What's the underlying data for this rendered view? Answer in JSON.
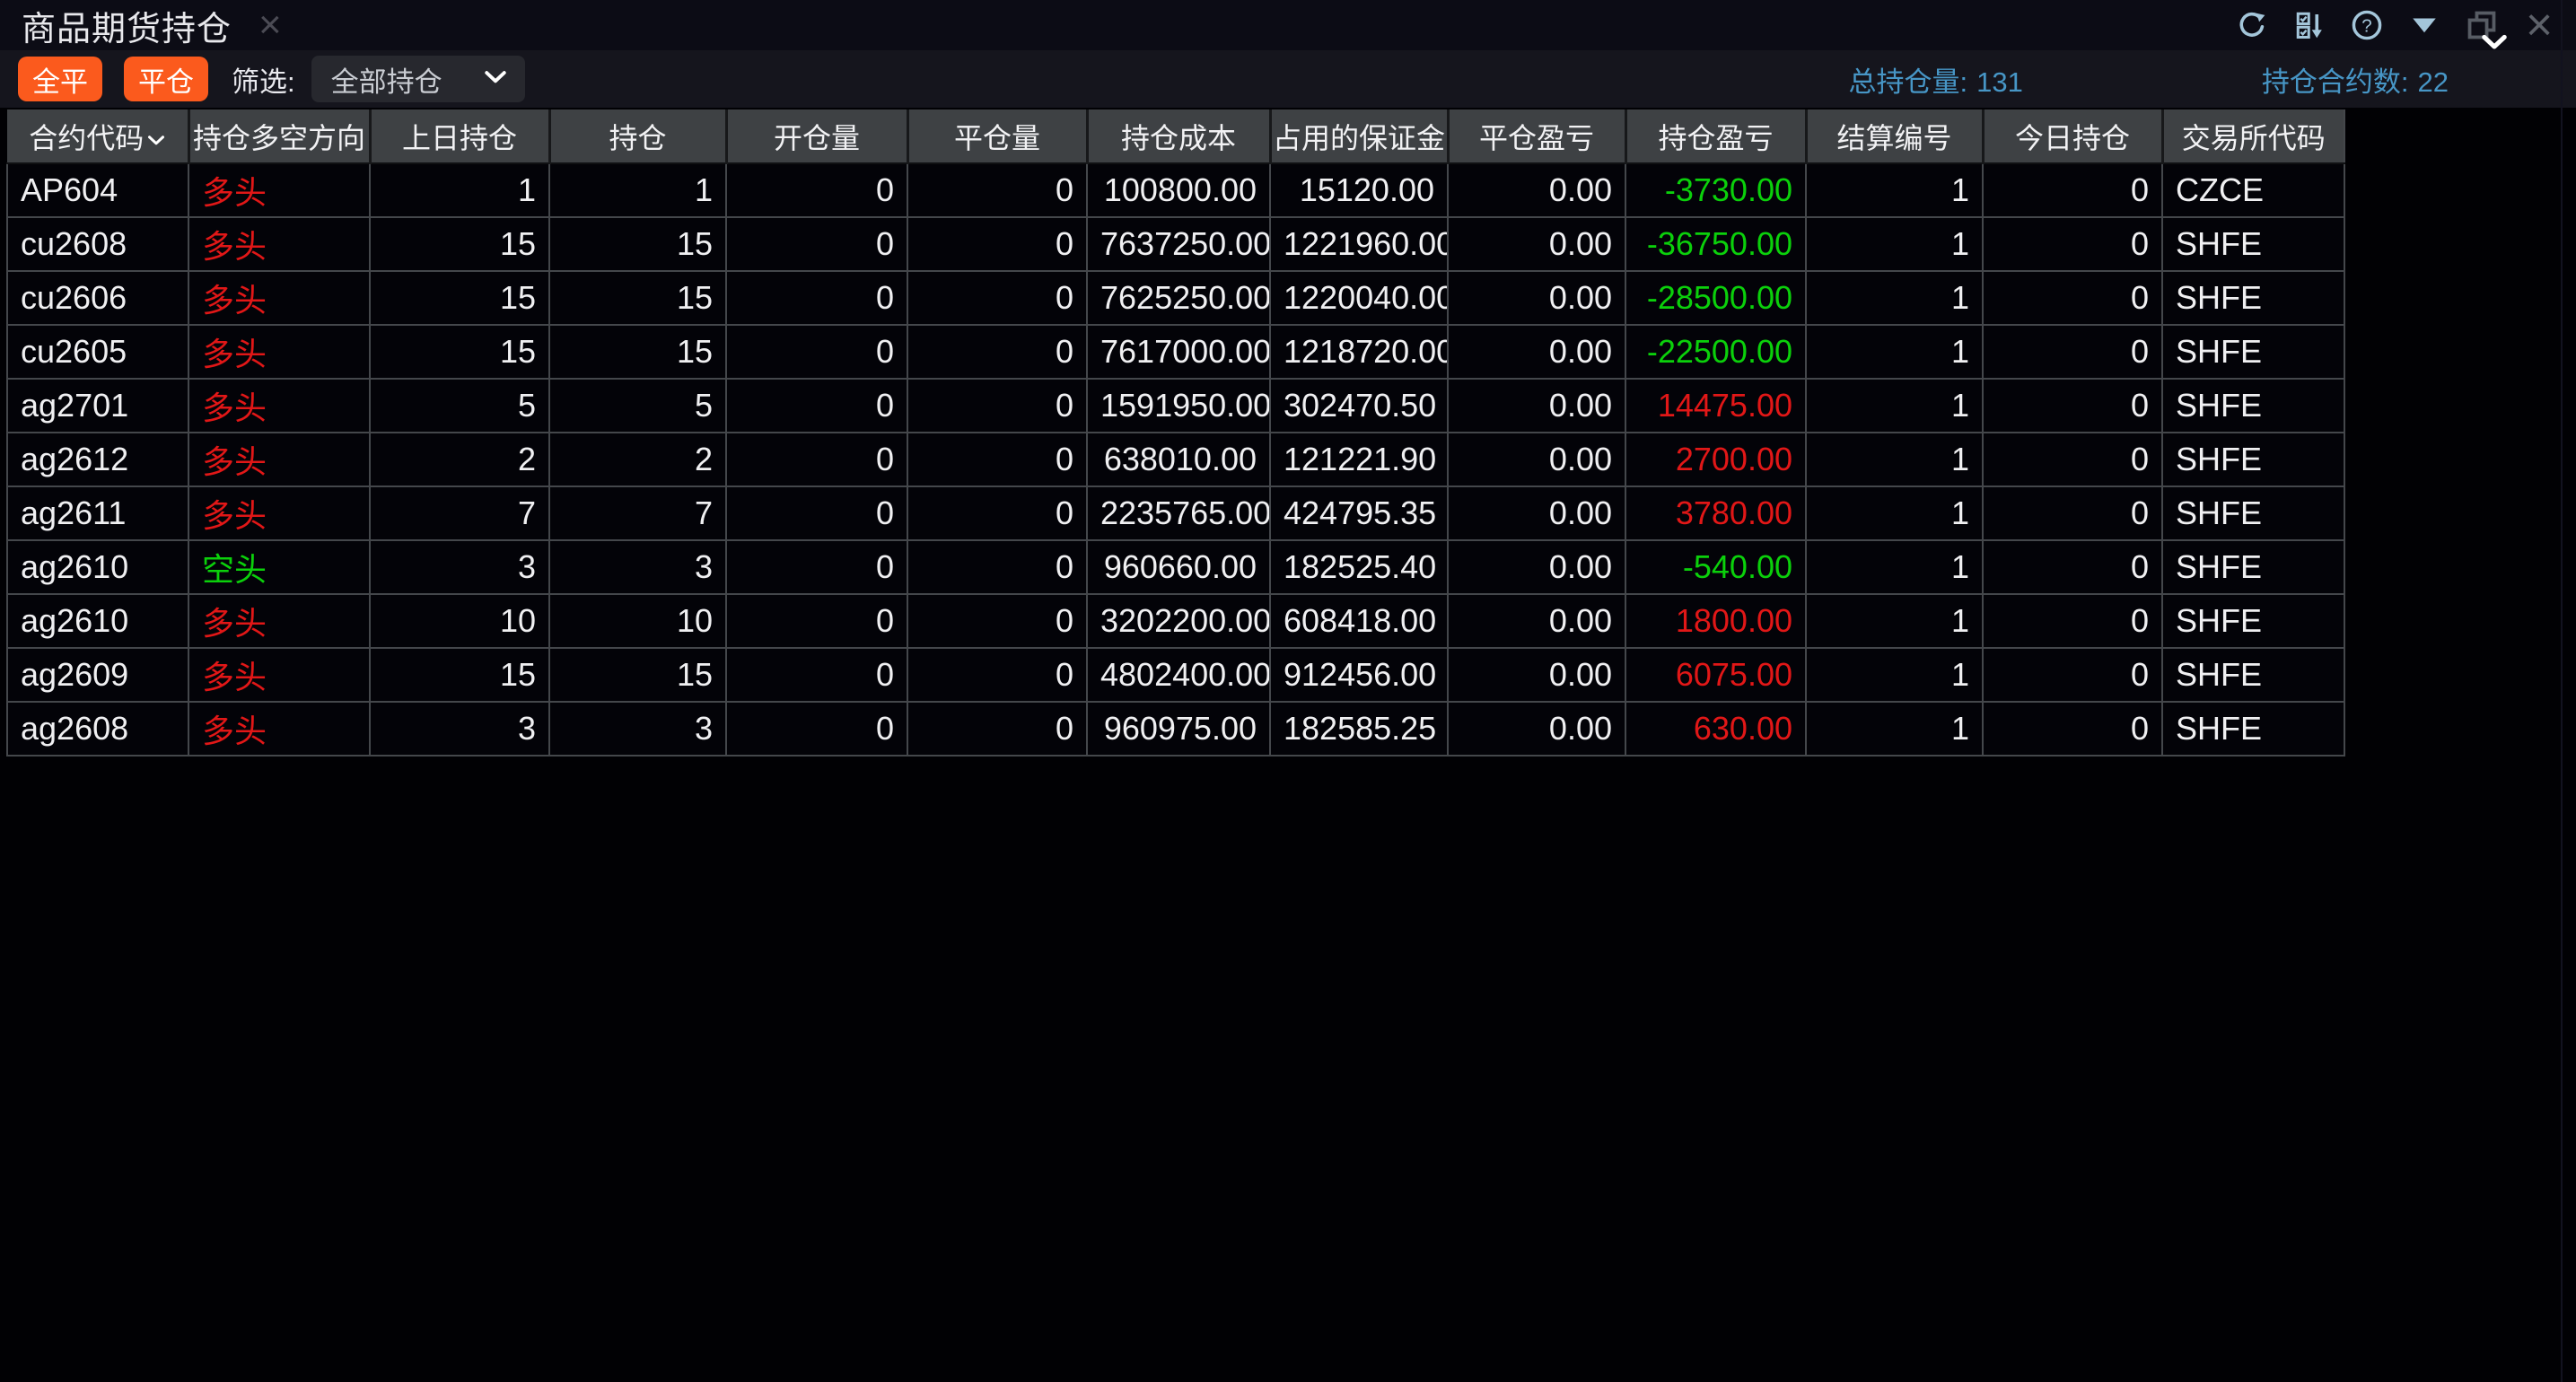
{
  "titlebar": {
    "title": "商品期货持仓",
    "tab_close_glyph": "×",
    "window_close_glyph": "×",
    "help_glyph": "?",
    "icons": [
      "tab-close-icon",
      "refresh-icon",
      "column-settings-icon",
      "help-icon",
      "dropdown-triangle-icon",
      "chevron-down-icon",
      "restore-window-icon",
      "close-window-icon"
    ]
  },
  "toolbar": {
    "close_all_label": "全平",
    "close_position_label": "平仓",
    "filter_label": "筛选:",
    "filter_value": "全部持仓",
    "total_position_label": "总持仓量:",
    "total_position_value": "131",
    "contract_count_label": "持仓合约数:",
    "contract_count_value": "22"
  },
  "colors": {
    "bg_app": "#010104",
    "bg_titlebar": "#0c0c15",
    "bg_toolbar": "#15151d",
    "bg_header": "#3e4144",
    "bg_row": "#030308",
    "grid_line": "#44474b",
    "accent_orange": "#fb5a1d",
    "stat_blue": "#4796c6",
    "long_red": "#e11717",
    "short_green": "#0bd00b",
    "icon_blue": "#a4c6da",
    "icon_gray": "#575c64"
  },
  "table": {
    "columns": [
      {
        "label": "合约代码",
        "align": "left",
        "sortable": true
      },
      {
        "label": "持仓多空方向",
        "align": "left"
      },
      {
        "label": "上日持仓",
        "align": "right"
      },
      {
        "label": "持仓",
        "align": "right"
      },
      {
        "label": "开仓量",
        "align": "right"
      },
      {
        "label": "平仓量",
        "align": "right"
      },
      {
        "label": "持仓成本",
        "align": "right"
      },
      {
        "label": "占用的保证金",
        "align": "right"
      },
      {
        "label": "平仓盈亏",
        "align": "right"
      },
      {
        "label": "持仓盈亏",
        "align": "right"
      },
      {
        "label": "结算编号",
        "align": "right"
      },
      {
        "label": "今日持仓",
        "align": "right"
      },
      {
        "label": "交易所代码",
        "align": "left"
      }
    ],
    "rows": [
      {
        "cells": [
          "AP604",
          "多头",
          "1",
          "1",
          "0",
          "0",
          "100800.00",
          "15120.00",
          "0.00",
          "-3730.00",
          "1",
          "0",
          "CZCE"
        ],
        "direction_color": "red",
        "profit_color": "green"
      },
      {
        "cells": [
          "cu2608",
          "多头",
          "15",
          "15",
          "0",
          "0",
          "7637250.00",
          "1221960.00",
          "0.00",
          "-36750.00",
          "1",
          "0",
          "SHFE"
        ],
        "direction_color": "red",
        "profit_color": "green"
      },
      {
        "cells": [
          "cu2606",
          "多头",
          "15",
          "15",
          "0",
          "0",
          "7625250.00",
          "1220040.00",
          "0.00",
          "-28500.00",
          "1",
          "0",
          "SHFE"
        ],
        "direction_color": "red",
        "profit_color": "green"
      },
      {
        "cells": [
          "cu2605",
          "多头",
          "15",
          "15",
          "0",
          "0",
          "7617000.00",
          "1218720.00",
          "0.00",
          "-22500.00",
          "1",
          "0",
          "SHFE"
        ],
        "direction_color": "red",
        "profit_color": "green"
      },
      {
        "cells": [
          "ag2701",
          "多头",
          "5",
          "5",
          "0",
          "0",
          "1591950.00",
          "302470.50",
          "0.00",
          "14475.00",
          "1",
          "0",
          "SHFE"
        ],
        "direction_color": "red",
        "profit_color": "red"
      },
      {
        "cells": [
          "ag2612",
          "多头",
          "2",
          "2",
          "0",
          "0",
          "638010.00",
          "121221.90",
          "0.00",
          "2700.00",
          "1",
          "0",
          "SHFE"
        ],
        "direction_color": "red",
        "profit_color": "red"
      },
      {
        "cells": [
          "ag2611",
          "多头",
          "7",
          "7",
          "0",
          "0",
          "2235765.00",
          "424795.35",
          "0.00",
          "3780.00",
          "1",
          "0",
          "SHFE"
        ],
        "direction_color": "red",
        "profit_color": "red"
      },
      {
        "cells": [
          "ag2610",
          "空头",
          "3",
          "3",
          "0",
          "0",
          "960660.00",
          "182525.40",
          "0.00",
          "-540.00",
          "1",
          "0",
          "SHFE"
        ],
        "direction_color": "green",
        "profit_color": "green"
      },
      {
        "cells": [
          "ag2610",
          "多头",
          "10",
          "10",
          "0",
          "0",
          "3202200.00",
          "608418.00",
          "0.00",
          "1800.00",
          "1",
          "0",
          "SHFE"
        ],
        "direction_color": "red",
        "profit_color": "red"
      },
      {
        "cells": [
          "ag2609",
          "多头",
          "15",
          "15",
          "0",
          "0",
          "4802400.00",
          "912456.00",
          "0.00",
          "6075.00",
          "1",
          "0",
          "SHFE"
        ],
        "direction_color": "red",
        "profit_color": "red"
      },
      {
        "cells": [
          "ag2608",
          "多头",
          "3",
          "3",
          "0",
          "0",
          "960975.00",
          "182585.25",
          "0.00",
          "630.00",
          "1",
          "0",
          "SHFE"
        ],
        "direction_color": "red",
        "profit_color": "red"
      }
    ]
  }
}
